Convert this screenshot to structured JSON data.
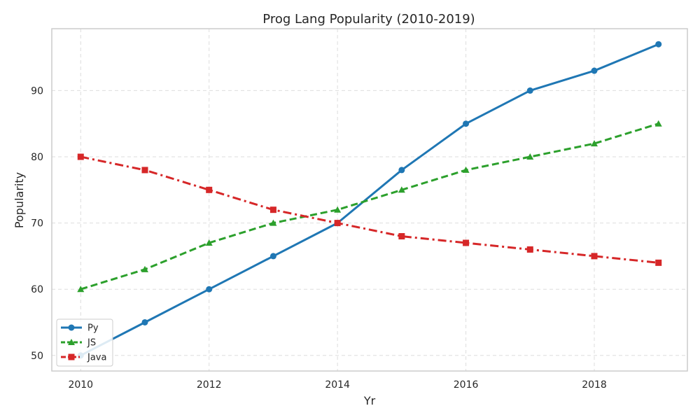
{
  "chart_data": {
    "type": "line",
    "title": "Prog Lang Popularity (2010-2019)",
    "xlabel": "Yr",
    "ylabel": "Popularity",
    "x": [
      2010,
      2011,
      2012,
      2013,
      2014,
      2015,
      2016,
      2017,
      2018,
      2019
    ],
    "xlim": [
      2009.55,
      2019.45
    ],
    "ylim": [
      47.65,
      99.35
    ],
    "xticks": [
      2010,
      2012,
      2014,
      2016,
      2018
    ],
    "yticks": [
      50,
      60,
      70,
      80,
      90
    ],
    "grid": true,
    "legend_position": "lower-left",
    "series": [
      {
        "name": "Py",
        "values": [
          50,
          55,
          60,
          65,
          70,
          78,
          85,
          90,
          93,
          97
        ],
        "color": "#1f77b4",
        "linestyle": "solid",
        "marker": "circle"
      },
      {
        "name": "JS",
        "values": [
          60,
          63,
          67,
          70,
          72,
          75,
          78,
          80,
          82,
          85
        ],
        "color": "#2ca02c",
        "linestyle": "dashed",
        "marker": "triangle"
      },
      {
        "name": "Java",
        "values": [
          80,
          78,
          75,
          72,
          70,
          68,
          67,
          66,
          65,
          64
        ],
        "color": "#d62728",
        "linestyle": "dashdot",
        "marker": "square"
      }
    ]
  }
}
